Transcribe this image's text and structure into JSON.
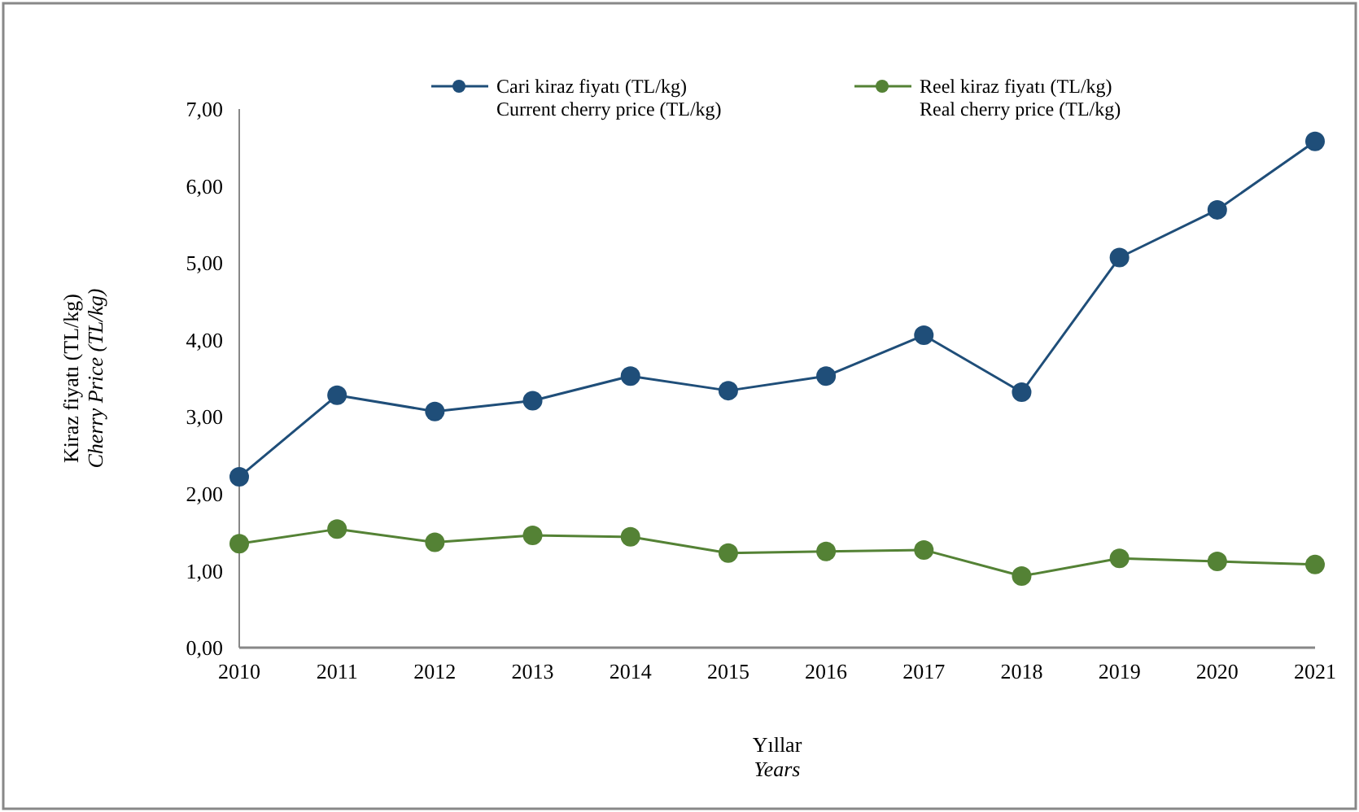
{
  "chart_data": {
    "type": "line",
    "xlabel": "Yıllar\nYears",
    "ylabel": "Kiraz fiyatı (TL/kg)\nCherry Price (TL/kg)",
    "categories": [
      "2010",
      "2011",
      "2012",
      "2013",
      "2014",
      "2015",
      "2016",
      "2017",
      "2018",
      "2019",
      "2020",
      "2021"
    ],
    "series": [
      {
        "name": "Cari kiraz fiyatı (TL/kg)\nCurrent cherry price (TL/kg)",
        "color": "#1f4e79",
        "values": [
          2.22,
          3.28,
          3.07,
          3.21,
          3.53,
          3.34,
          3.53,
          4.06,
          3.32,
          5.07,
          5.69,
          6.58
        ]
      },
      {
        "name": "Reel kiraz fiyatı (TL/kg)\nReal cherry price (TL/kg)",
        "color": "#548235",
        "values": [
          1.35,
          1.54,
          1.37,
          1.46,
          1.44,
          1.23,
          1.25,
          1.27,
          0.93,
          1.16,
          1.12,
          1.08
        ]
      }
    ],
    "ylim": [
      0,
      7
    ],
    "yticks": [
      {
        "value": 0,
        "label": "0,00"
      },
      {
        "value": 1,
        "label": "1,00"
      },
      {
        "value": 2,
        "label": "2,00"
      },
      {
        "value": 3,
        "label": "3,00"
      },
      {
        "value": 4,
        "label": "4,00"
      },
      {
        "value": 5,
        "label": "5,00"
      },
      {
        "value": 6,
        "label": "6,00"
      },
      {
        "value": 7,
        "label": "7,00"
      }
    ],
    "grid": false,
    "legend": "top",
    "marker": "circle",
    "line_style": "solid"
  }
}
